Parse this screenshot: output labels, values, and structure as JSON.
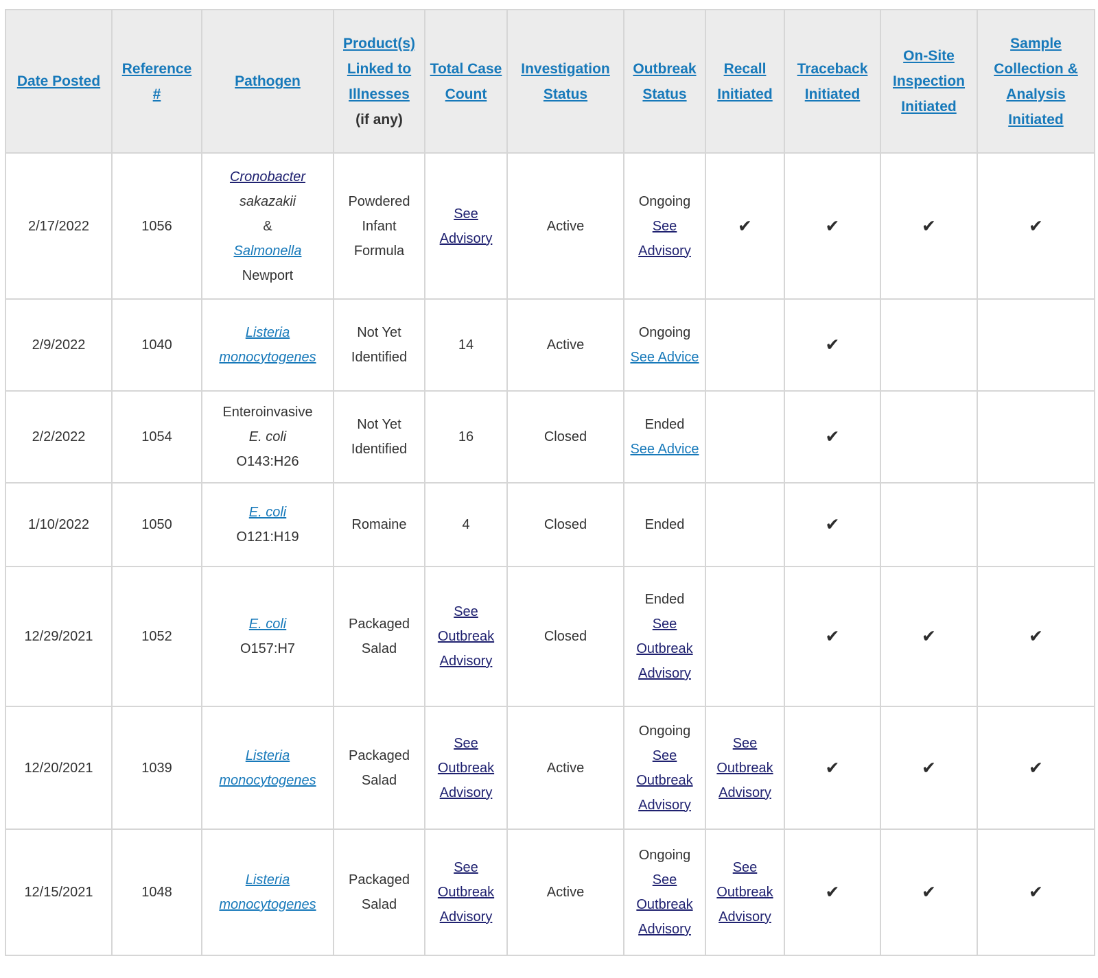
{
  "colors": {
    "header_link": "#1779ba",
    "link": "#1779ba",
    "visited_link": "#1f2170",
    "text": "#333333",
    "header_background": "#ececec",
    "cell_border": "#d6d6d6",
    "checkmark": "#2d2d2d"
  },
  "check_glyph": "✔",
  "table": {
    "headers": [
      {
        "id": "date-posted",
        "parts": [
          {
            "t": "Date Posted",
            "k": "hlink"
          }
        ]
      },
      {
        "id": "reference-number",
        "parts": [
          {
            "t": "Reference #",
            "k": "hlink"
          }
        ]
      },
      {
        "id": "pathogen",
        "parts": [
          {
            "t": "Pathogen",
            "k": "hlink"
          }
        ]
      },
      {
        "id": "products-linked",
        "parts": [
          {
            "t": "Product(s) Linked to Illnesses",
            "k": "hlink"
          },
          {
            "t": "(if any)",
            "k": "hplain"
          }
        ]
      },
      {
        "id": "total-case-count",
        "parts": [
          {
            "t": "Total Case Count",
            "k": "hlink"
          }
        ]
      },
      {
        "id": "investigation-status",
        "parts": [
          {
            "t": "Investigation Status",
            "k": "hlink"
          }
        ]
      },
      {
        "id": "outbreak-status",
        "parts": [
          {
            "t": "Outbreak Status",
            "k": "hlink"
          }
        ]
      },
      {
        "id": "recall-initiated",
        "parts": [
          {
            "t": "Recall Initiated",
            "k": "hlink"
          }
        ]
      },
      {
        "id": "traceback-initiated",
        "parts": [
          {
            "t": "Traceback Initiated",
            "k": "hlink"
          }
        ]
      },
      {
        "id": "onsite-inspection-initiated",
        "parts": [
          {
            "t": "On-Site Inspection Initiated",
            "k": "hlink"
          }
        ]
      },
      {
        "id": "sample-collection-analysis-initiated",
        "parts": [
          {
            "t": "Sample Collection & Analysis Initiated",
            "k": "hlink"
          }
        ]
      }
    ],
    "rows": [
      {
        "date_posted": [
          {
            "t": "2/17/2022",
            "k": "plain"
          }
        ],
        "reference_number": [
          {
            "t": "1056",
            "k": "plain"
          }
        ],
        "pathogen": [
          {
            "t": "Cronobacter",
            "k": "vlink-italic"
          },
          {
            "t": "sakazakii",
            "k": "italic"
          },
          {
            "t": "&",
            "k": "plain"
          },
          {
            "t": "Salmonella",
            "k": "link-italic"
          },
          {
            "t": "Newport",
            "k": "plain"
          }
        ],
        "products_linked": [
          {
            "t": "Powdered Infant Formula",
            "k": "plain"
          }
        ],
        "total_case_count": [
          {
            "t": "See Advisory",
            "k": "vlink"
          }
        ],
        "investigation_status": [
          {
            "t": "Active",
            "k": "plain"
          }
        ],
        "outbreak_status": [
          {
            "t": "Ongoing",
            "k": "plain"
          },
          {
            "t": "See Advisory",
            "k": "vlink"
          }
        ],
        "recall_initiated": [
          {
            "k": "check"
          }
        ],
        "traceback_initiated": [
          {
            "k": "check"
          }
        ],
        "onsite_inspection_initiated": [
          {
            "k": "check"
          }
        ],
        "sample_collection_analysis_initiated": [
          {
            "k": "check"
          }
        ]
      },
      {
        "date_posted": [
          {
            "t": "2/9/2022",
            "k": "plain"
          }
        ],
        "reference_number": [
          {
            "t": "1040",
            "k": "plain"
          }
        ],
        "pathogen": [
          {
            "t": "Listeria monocytogenes",
            "k": "link-italic"
          }
        ],
        "products_linked": [
          {
            "t": "Not Yet Identified",
            "k": "plain"
          }
        ],
        "total_case_count": [
          {
            "t": "14",
            "k": "plain"
          }
        ],
        "investigation_status": [
          {
            "t": "Active",
            "k": "plain"
          }
        ],
        "outbreak_status": [
          {
            "t": "Ongoing",
            "k": "plain"
          },
          {
            "t": "See Advice",
            "k": "link"
          }
        ],
        "recall_initiated": [],
        "traceback_initiated": [
          {
            "k": "check"
          }
        ],
        "onsite_inspection_initiated": [],
        "sample_collection_analysis_initiated": []
      },
      {
        "date_posted": [
          {
            "t": "2/2/2022",
            "k": "plain"
          }
        ],
        "reference_number": [
          {
            "t": "1054",
            "k": "plain"
          }
        ],
        "pathogen": [
          {
            "t": "Enteroinvasive",
            "k": "plain"
          },
          {
            "t": "E. coli",
            "k": "italic"
          },
          {
            "t": "O143:H26",
            "k": "plain"
          }
        ],
        "products_linked": [
          {
            "t": "Not Yet Identified",
            "k": "plain"
          }
        ],
        "total_case_count": [
          {
            "t": "16",
            "k": "plain"
          }
        ],
        "investigation_status": [
          {
            "t": "Closed",
            "k": "plain"
          }
        ],
        "outbreak_status": [
          {
            "t": "Ended",
            "k": "plain"
          },
          {
            "t": "See Advice",
            "k": "link"
          }
        ],
        "recall_initiated": [],
        "traceback_initiated": [
          {
            "k": "check"
          }
        ],
        "onsite_inspection_initiated": [],
        "sample_collection_analysis_initiated": []
      },
      {
        "date_posted": [
          {
            "t": "1/10/2022",
            "k": "plain"
          }
        ],
        "reference_number": [
          {
            "t": "1050",
            "k": "plain"
          }
        ],
        "pathogen": [
          {
            "t": "E. coli",
            "k": "link-italic"
          },
          {
            "t": "O121:H19",
            "k": "plain"
          }
        ],
        "products_linked": [
          {
            "t": "Romaine",
            "k": "plain"
          }
        ],
        "total_case_count": [
          {
            "t": "4",
            "k": "plain"
          }
        ],
        "investigation_status": [
          {
            "t": "Closed",
            "k": "plain"
          }
        ],
        "outbreak_status": [
          {
            "t": "Ended",
            "k": "plain"
          }
        ],
        "recall_initiated": [],
        "traceback_initiated": [
          {
            "k": "check"
          }
        ],
        "onsite_inspection_initiated": [],
        "sample_collection_analysis_initiated": []
      },
      {
        "date_posted": [
          {
            "t": "12/29/2021",
            "k": "plain"
          }
        ],
        "reference_number": [
          {
            "t": "1052",
            "k": "plain"
          }
        ],
        "pathogen": [
          {
            "t": "E. coli",
            "k": "link-italic"
          },
          {
            "t": "O157:H7",
            "k": "plain"
          }
        ],
        "products_linked": [
          {
            "t": "Packaged Salad",
            "k": "plain"
          }
        ],
        "total_case_count": [
          {
            "t": "See Outbreak Advisory",
            "k": "vlink"
          }
        ],
        "investigation_status": [
          {
            "t": "Closed",
            "k": "plain"
          }
        ],
        "outbreak_status": [
          {
            "t": "Ended",
            "k": "plain"
          },
          {
            "t": "See Outbreak Advisory",
            "k": "vlink"
          }
        ],
        "recall_initiated": [],
        "traceback_initiated": [
          {
            "k": "check"
          }
        ],
        "onsite_inspection_initiated": [
          {
            "k": "check"
          }
        ],
        "sample_collection_analysis_initiated": [
          {
            "k": "check"
          }
        ]
      },
      {
        "date_posted": [
          {
            "t": "12/20/2021",
            "k": "plain"
          }
        ],
        "reference_number": [
          {
            "t": "1039",
            "k": "plain"
          }
        ],
        "pathogen": [
          {
            "t": "Listeria monocytogenes",
            "k": "link-italic"
          }
        ],
        "products_linked": [
          {
            "t": "Packaged Salad",
            "k": "plain"
          }
        ],
        "total_case_count": [
          {
            "t": "See Outbreak Advisory",
            "k": "vlink"
          }
        ],
        "investigation_status": [
          {
            "t": "Active",
            "k": "plain"
          }
        ],
        "outbreak_status": [
          {
            "t": "Ongoing",
            "k": "plain"
          },
          {
            "t": "See Outbreak Advisory",
            "k": "vlink"
          }
        ],
        "recall_initiated": [
          {
            "t": "See Outbreak Advisory",
            "k": "vlink"
          }
        ],
        "traceback_initiated": [
          {
            "k": "check"
          }
        ],
        "onsite_inspection_initiated": [
          {
            "k": "check"
          }
        ],
        "sample_collection_analysis_initiated": [
          {
            "k": "check"
          }
        ]
      },
      {
        "date_posted": [
          {
            "t": "12/15/2021",
            "k": "plain"
          }
        ],
        "reference_number": [
          {
            "t": "1048",
            "k": "plain"
          }
        ],
        "pathogen": [
          {
            "t": "Listeria monocytogenes",
            "k": "link-italic"
          }
        ],
        "products_linked": [
          {
            "t": "Packaged Salad",
            "k": "plain"
          }
        ],
        "total_case_count": [
          {
            "t": "See Outbreak Advisory",
            "k": "vlink"
          }
        ],
        "investigation_status": [
          {
            "t": "Active",
            "k": "plain"
          }
        ],
        "outbreak_status": [
          {
            "t": "Ongoing",
            "k": "plain"
          },
          {
            "t": "See Outbreak Advisory",
            "k": "vlink"
          }
        ],
        "recall_initiated": [
          {
            "t": "See Outbreak Advisory",
            "k": "vlink"
          }
        ],
        "traceback_initiated": [
          {
            "k": "check"
          }
        ],
        "onsite_inspection_initiated": [
          {
            "k": "check"
          }
        ],
        "sample_collection_analysis_initiated": [
          {
            "k": "check"
          }
        ]
      }
    ],
    "column_order": [
      "date_posted",
      "reference_number",
      "pathogen",
      "products_linked",
      "total_case_count",
      "investigation_status",
      "outbreak_status",
      "recall_initiated",
      "traceback_initiated",
      "onsite_inspection_initiated",
      "sample_collection_analysis_initiated"
    ]
  }
}
